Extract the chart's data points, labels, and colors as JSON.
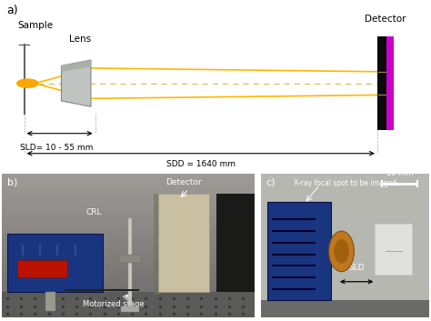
{
  "fig_width": 4.74,
  "fig_height": 3.53,
  "dpi": 100,
  "bg_color": "#ffffff",
  "panel_a_label": "a)",
  "panel_b_label": "b)",
  "panel_c_label": "c)",
  "schematic": {
    "source_color": "#FFA500",
    "ray_color": "#FFB800",
    "ray_dashed_color": "#D4C060",
    "sld_label": "SLD= 10 - 55 mm",
    "sdd_label": "SDD = 1640 mm",
    "sample_label": "Sample",
    "lens_label": "Lens",
    "detector_label": "Detector"
  }
}
